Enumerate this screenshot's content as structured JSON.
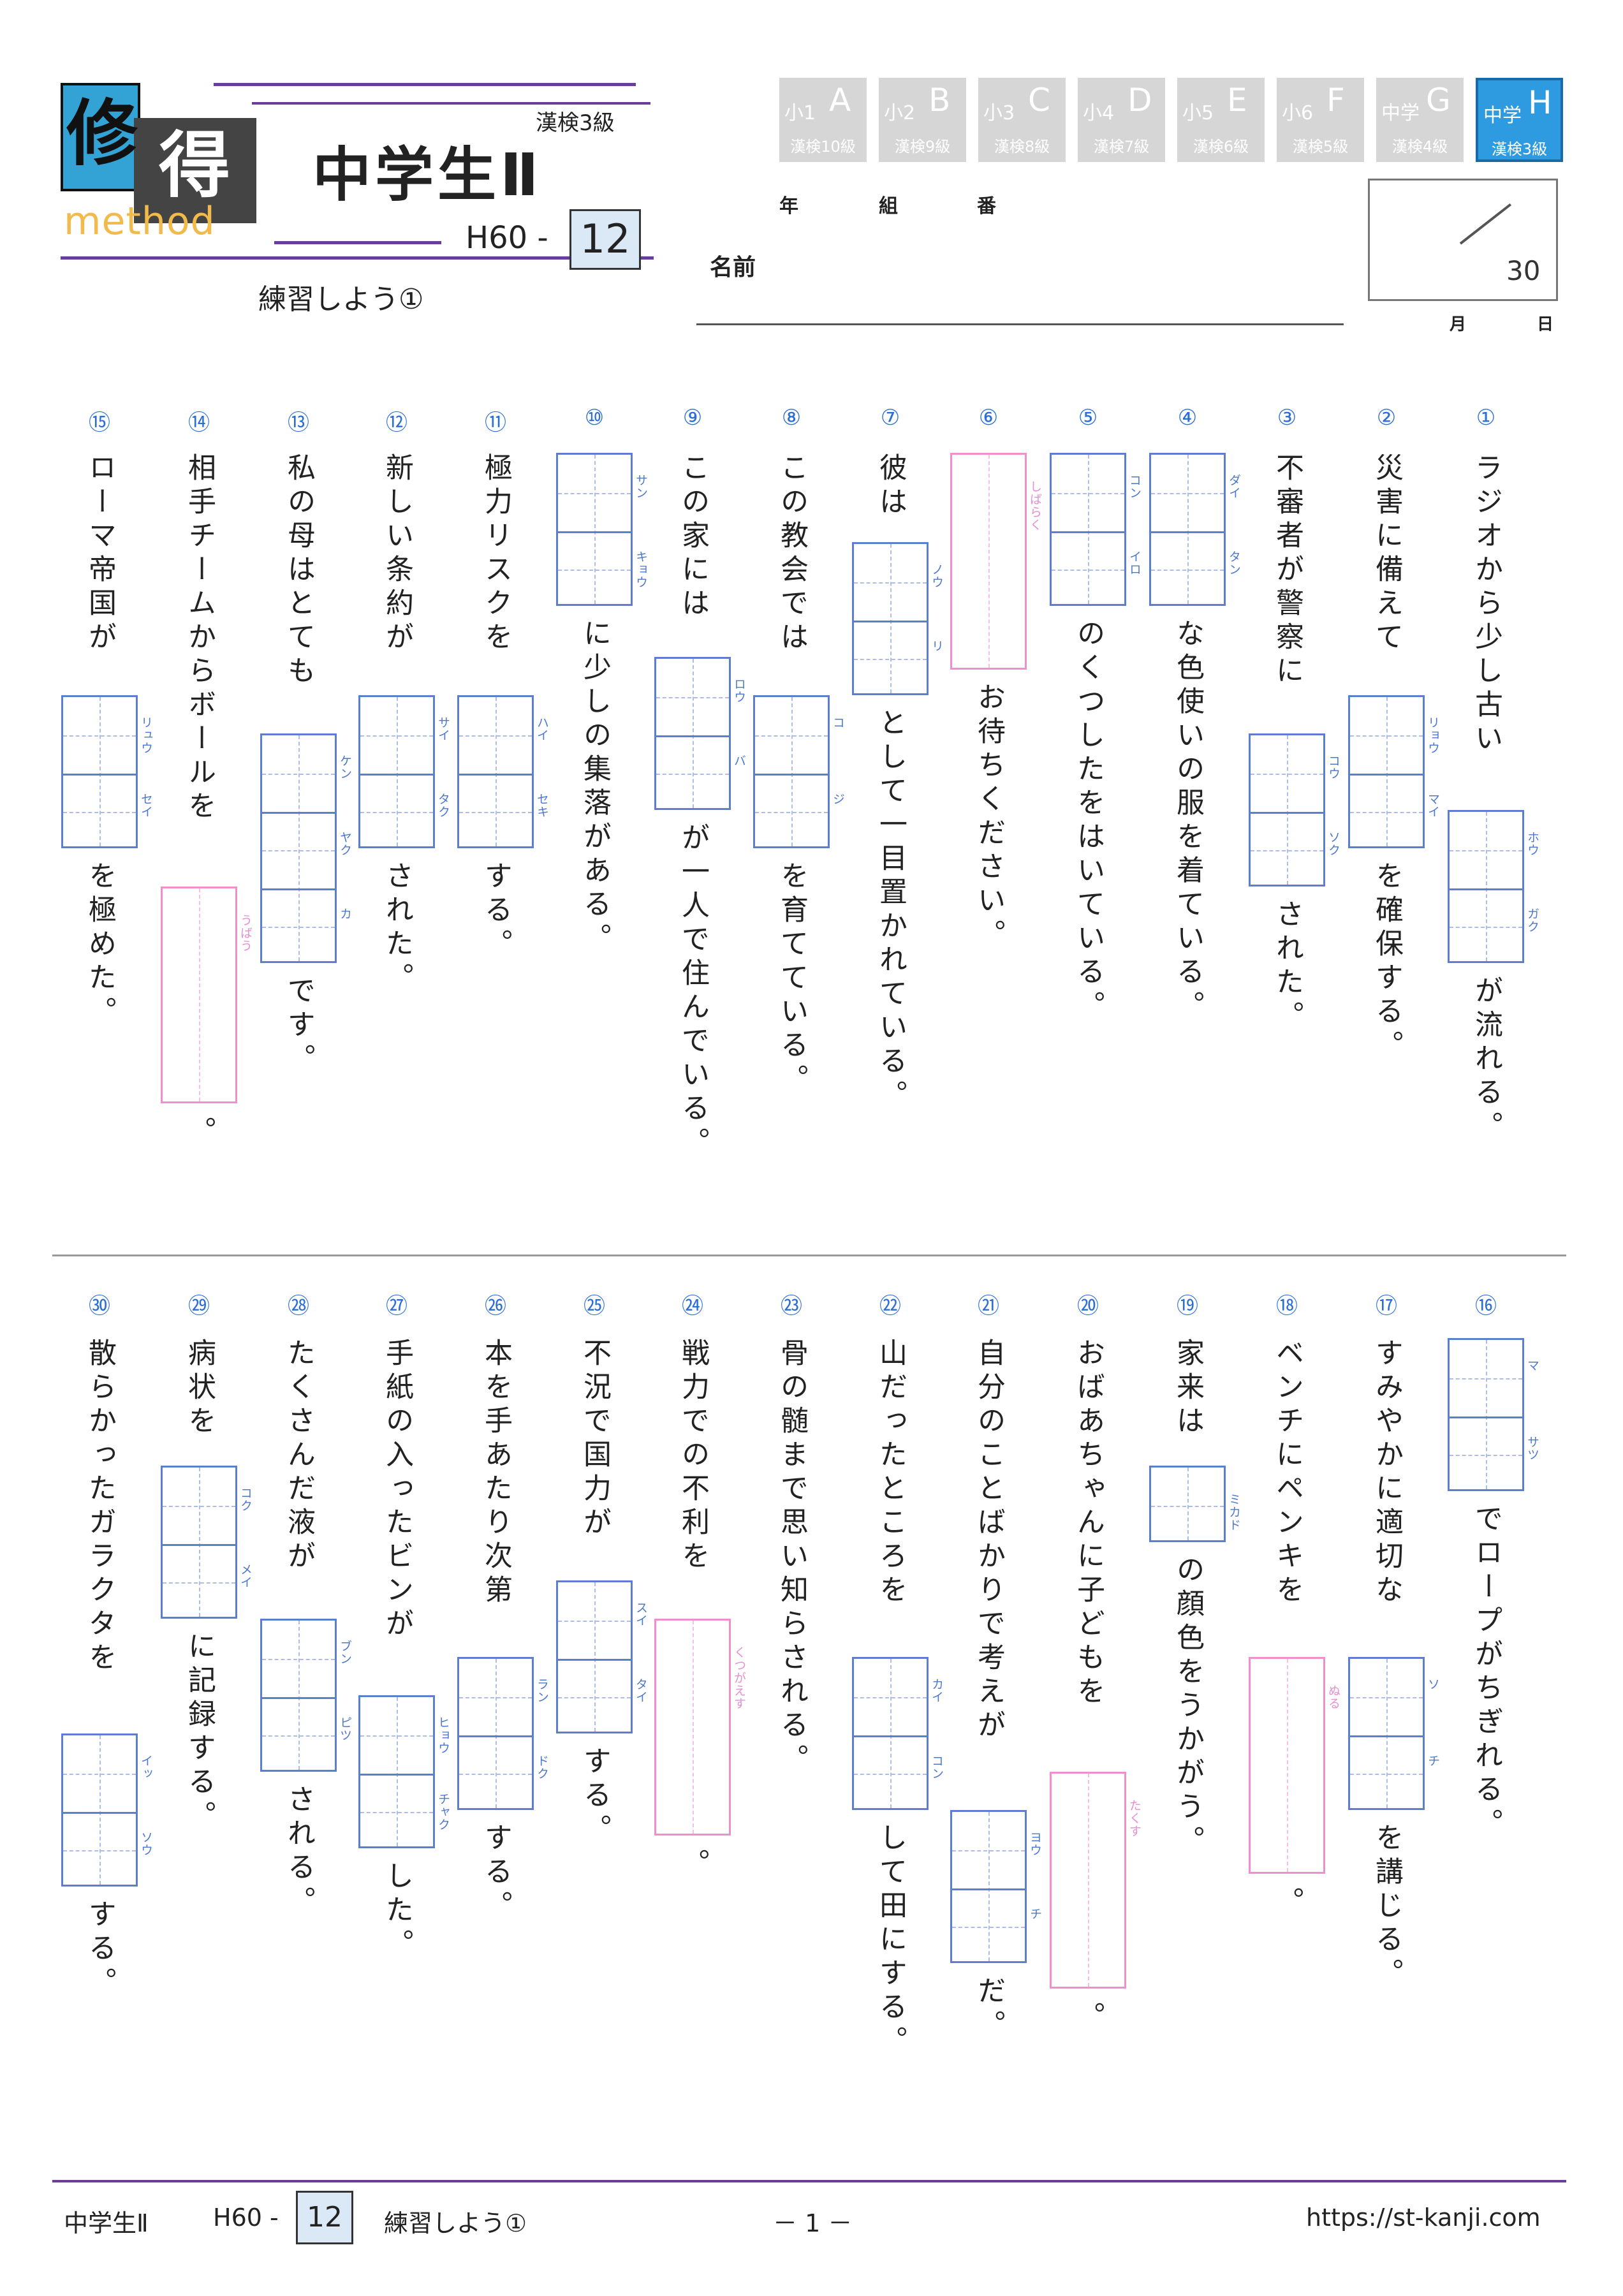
{
  "header": {
    "logo": {
      "k1": "修",
      "k2": "得",
      "sub": "method"
    },
    "title": "中学生Ⅱ",
    "level": "漢検3級",
    "code_prefix": "H60 -",
    "code_num": "12",
    "subtitle": "練習しよう①"
  },
  "grades": [
    {
      "g1": "小1",
      "g2": "A",
      "kanken": "漢検10級",
      "active": false
    },
    {
      "g1": "小2",
      "g2": "B",
      "kanken": "漢検9級",
      "active": false
    },
    {
      "g1": "小3",
      "g2": "C",
      "kanken": "漢検8級",
      "active": false
    },
    {
      "g1": "小4",
      "g2": "D",
      "kanken": "漢検7級",
      "active": false
    },
    {
      "g1": "小5",
      "g2": "E",
      "kanken": "漢検6級",
      "active": false
    },
    {
      "g1": "小6",
      "g2": "F",
      "kanken": "漢検5級",
      "active": false
    },
    {
      "g1": "中学",
      "g2": "G",
      "kanken": "漢検4級",
      "active": false
    },
    {
      "g1": "中学",
      "g2": "H",
      "kanken": "漢検3級",
      "active": true
    }
  ],
  "meta": {
    "year": "年",
    "class": "組",
    "number": "番",
    "name": "名前",
    "month": "月",
    "day": "日",
    "score_total": "30"
  },
  "questions": [
    {
      "num": "①",
      "parts": [
        {
          "t": "ラジオから少し古い"
        },
        {
          "box": 2,
          "f": "ホウ ガク"
        },
        {
          "t": "が流れる。"
        }
      ]
    },
    {
      "num": "②",
      "parts": [
        {
          "t": "災害に備えて"
        },
        {
          "box": 2,
          "f": "リョウ マイ"
        },
        {
          "t": "を確保する。"
        }
      ]
    },
    {
      "num": "③",
      "parts": [
        {
          "t": "不審者が警察に"
        },
        {
          "box": 2,
          "f": "コウ ソク"
        },
        {
          "t": "された。"
        }
      ]
    },
    {
      "num": "④",
      "parts": [
        {
          "box": 2,
          "f": "ダイ タン"
        },
        {
          "t": "な色使いの服を着ている。"
        }
      ]
    },
    {
      "num": "⑤",
      "parts": [
        {
          "box": 2,
          "f": "コン イロ"
        },
        {
          "t": "のくつしたをはいている。"
        }
      ]
    },
    {
      "num": "⑥",
      "parts": [
        {
          "hbox": 1,
          "f": "しばらく"
        },
        {
          "t": "お待ちください。"
        }
      ]
    },
    {
      "num": "⑦",
      "parts": [
        {
          "t": "彼は"
        },
        {
          "box": 2,
          "f": "ノウ リ"
        },
        {
          "t": "として一目置かれている。"
        }
      ]
    },
    {
      "num": "⑧",
      "parts": [
        {
          "t": "この教会では"
        },
        {
          "box": 2,
          "f": "コ ジ"
        },
        {
          "t": "を育てている。"
        }
      ]
    },
    {
      "num": "⑨",
      "parts": [
        {
          "t": "この家には"
        },
        {
          "box": 2,
          "f": "ロウ バ"
        },
        {
          "t": "が一人で住んでいる。"
        }
      ]
    },
    {
      "num": "⑩",
      "parts": [
        {
          "box": 2,
          "f": "サン キョウ"
        },
        {
          "t": "に少しの集落がある。"
        }
      ]
    },
    {
      "num": "⑪",
      "parts": [
        {
          "t": "極力リスクを"
        },
        {
          "box": 2,
          "f": "ハイ セキ"
        },
        {
          "t": "する。"
        }
      ]
    },
    {
      "num": "⑫",
      "parts": [
        {
          "t": "新しい条約が"
        },
        {
          "box": 2,
          "f": "サイ タク"
        },
        {
          "t": "された。"
        }
      ]
    },
    {
      "num": "⑬",
      "parts": [
        {
          "t": "私の母はとても"
        },
        {
          "box": 3,
          "f": "ケン ヤク カ"
        },
        {
          "t": "です。"
        }
      ]
    },
    {
      "num": "⑭",
      "parts": [
        {
          "t": "相手チームからボールを"
        },
        {
          "hbox": 1,
          "f": "うばう"
        },
        {
          "t": "。"
        }
      ]
    },
    {
      "num": "⑮",
      "parts": [
        {
          "t": "ローマ帝国が"
        },
        {
          "box": 2,
          "f": "リュウ セイ"
        },
        {
          "t": "を極めた。"
        }
      ]
    },
    {
      "num": "⑯",
      "parts": [
        {
          "box": 2,
          "f": "マ サツ"
        },
        {
          "t": "でロープがちぎれる。"
        }
      ]
    },
    {
      "num": "⑰",
      "parts": [
        {
          "t": "すみやかに適切な"
        },
        {
          "box": 2,
          "f": "ソ チ"
        },
        {
          "t": "を講じる。"
        }
      ]
    },
    {
      "num": "⑱",
      "parts": [
        {
          "t": "ベンチにペンキを"
        },
        {
          "hbox": 1,
          "f": "ぬる"
        },
        {
          "t": "。"
        }
      ]
    },
    {
      "num": "⑲",
      "parts": [
        {
          "t": "家来は"
        },
        {
          "box": 1,
          "f": "ミカド"
        },
        {
          "t": "の顔色をうかがう。"
        }
      ]
    },
    {
      "num": "⑳",
      "parts": [
        {
          "t": "おばあちゃんに子どもを"
        },
        {
          "hbox": 1,
          "f": "たくす"
        },
        {
          "t": "。"
        }
      ]
    },
    {
      "num": "㉑",
      "parts": [
        {
          "t": "自分のことばかりで考えが"
        },
        {
          "box": 2,
          "f": "ヨウ チ"
        },
        {
          "t": "だ。"
        }
      ]
    },
    {
      "num": "㉒",
      "parts": [
        {
          "t": "山だったところを"
        },
        {
          "box": 2,
          "f": "カイ コン"
        },
        {
          "t": "して田にする。"
        }
      ]
    },
    {
      "num": "㉓",
      "parts": [
        {
          "t": "骨の髄まで思い知らされる。"
        }
      ]
    },
    {
      "num": "㉔",
      "parts": [
        {
          "t": "戦力での不利を"
        },
        {
          "hbox": 1,
          "f": "くつがえす"
        },
        {
          "t": "。"
        }
      ]
    },
    {
      "num": "㉕",
      "parts": [
        {
          "t": "不況で国力が"
        },
        {
          "box": 2,
          "f": "スイ タイ"
        },
        {
          "t": "する。"
        }
      ]
    },
    {
      "num": "㉖",
      "parts": [
        {
          "t": "本を手あたり次第"
        },
        {
          "box": 2,
          "f": "ラン ドク"
        },
        {
          "t": "する。"
        }
      ]
    },
    {
      "num": "㉗",
      "parts": [
        {
          "t": "手紙の入ったビンが"
        },
        {
          "box": 2,
          "f": "ヒョウ チャク"
        },
        {
          "t": "した。"
        }
      ]
    },
    {
      "num": "㉘",
      "parts": [
        {
          "t": "たくさんだ液が"
        },
        {
          "box": 2,
          "f": "ブン ピツ"
        },
        {
          "t": "される。"
        }
      ]
    },
    {
      "num": "㉙",
      "parts": [
        {
          "t": "病状を"
        },
        {
          "box": 2,
          "f": "コク メイ"
        },
        {
          "t": "に記録する。"
        }
      ]
    },
    {
      "num": "㉚",
      "parts": [
        {
          "t": "散らかったガラクタを"
        },
        {
          "box": 2,
          "f": "イッ ソウ"
        },
        {
          "t": "する。"
        }
      ]
    }
  ],
  "footer": {
    "title": "中学生Ⅱ",
    "code_prefix": "H60 -",
    "code_num": "12",
    "subtitle": "練習しよう①",
    "page": "－ 1 －",
    "url": "https://st-kanji.com"
  }
}
